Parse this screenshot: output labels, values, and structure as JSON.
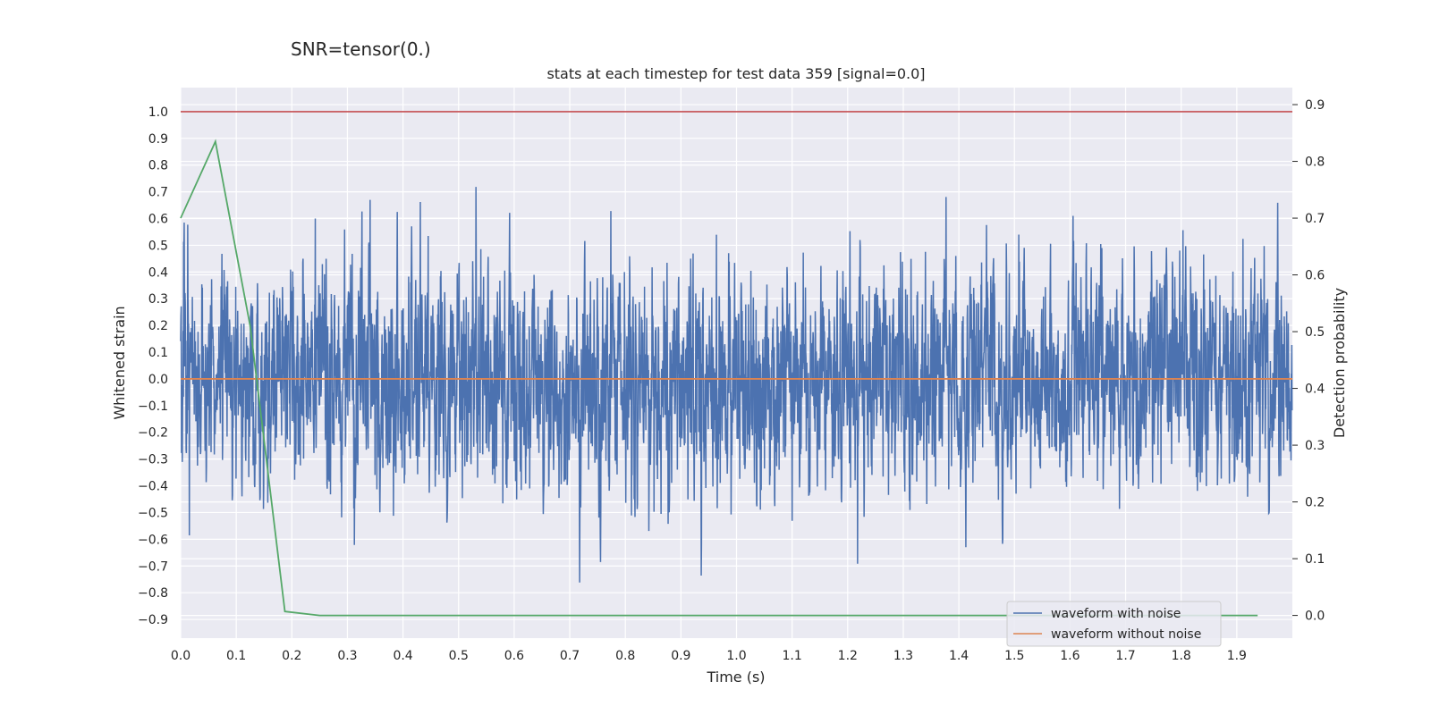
{
  "chart_data": {
    "type": "line",
    "suptitle": "SNR=tensor(0.)",
    "title": "stats at each timestep for test data 359 [signal=0.0]",
    "xlabel": "Time (s)",
    "ylabel": "Whitened strain",
    "ylabel_right": "Detection probability",
    "xlim": [
      0.0,
      2.0
    ],
    "ylim": [
      -0.97,
      1.09
    ],
    "ylim_right": [
      -0.04,
      0.93
    ],
    "x_ticks": [
      "0.0",
      "0.1",
      "0.2",
      "0.3",
      "0.4",
      "0.5",
      "0.6",
      "0.7",
      "0.8",
      "0.9",
      "1.0",
      "1.1",
      "1.2",
      "1.3",
      "1.4",
      "1.5",
      "1.6",
      "1.7",
      "1.8",
      "1.9"
    ],
    "y_ticks": [
      "1.0",
      "0.9",
      "0.8",
      "0.7",
      "0.6",
      "0.5",
      "0.4",
      "0.3",
      "0.2",
      "0.1",
      "0.0",
      "−0.1",
      "−0.2",
      "−0.3",
      "−0.4",
      "−0.5",
      "−0.6",
      "−0.7",
      "−0.8",
      "−0.9"
    ],
    "y_tick_values": [
      1.0,
      0.9,
      0.8,
      0.7,
      0.6,
      0.5,
      0.4,
      0.3,
      0.2,
      0.1,
      0.0,
      -0.1,
      -0.2,
      -0.3,
      -0.4,
      -0.5,
      -0.6,
      -0.7,
      -0.8,
      -0.9
    ],
    "y2_ticks": [
      "0.9",
      "0.8",
      "0.7",
      "0.6",
      "0.5",
      "0.4",
      "0.3",
      "0.2",
      "0.1",
      "0.0"
    ],
    "y2_tick_values": [
      0.9,
      0.8,
      0.7,
      0.6,
      0.5,
      0.4,
      0.3,
      0.2,
      0.1,
      0.0
    ],
    "threshold": {
      "value": 1.0,
      "color": "#c44e52"
    },
    "series": [
      {
        "name": "waveform with noise",
        "color": "#4c72b0",
        "kind": "noise",
        "sample_rate": 2048,
        "amplitude": 0.26,
        "clip": [
          -0.87,
          1.0
        ]
      },
      {
        "name": "waveform without noise",
        "color": "#dd8452",
        "kind": "flat",
        "value": 0.0
      },
      {
        "name": "detection probability",
        "color": "#55a868",
        "axis": "right",
        "x": [
          0.0,
          0.0625,
          0.125,
          0.1875,
          0.25,
          0.3125,
          0.375,
          0.4375,
          0.5,
          0.5625,
          0.625,
          0.6875,
          0.75,
          0.8125,
          0.875,
          0.9375,
          1.0,
          1.0625,
          1.125,
          1.1875,
          1.25,
          1.3125,
          1.375,
          1.4375,
          1.5,
          1.5625,
          1.625,
          1.6875,
          1.75,
          1.8125,
          1.875,
          1.9375
        ],
        "y": [
          0.7,
          0.835,
          0.51,
          0.007,
          0.0,
          0.0,
          0.0,
          0.0,
          0.0,
          0.0,
          0.0,
          0.0,
          0.0,
          0.0,
          0.0,
          0.0,
          0.0,
          0.0,
          0.0,
          0.0,
          0.0,
          0.0,
          0.0,
          0.0,
          0.0,
          0.0,
          0.0,
          0.0,
          0.0,
          0.0,
          0.0,
          0.0
        ]
      }
    ],
    "legend_position": "lower right",
    "legend_entries": [
      "waveform with noise",
      "waveform without noise"
    ]
  }
}
